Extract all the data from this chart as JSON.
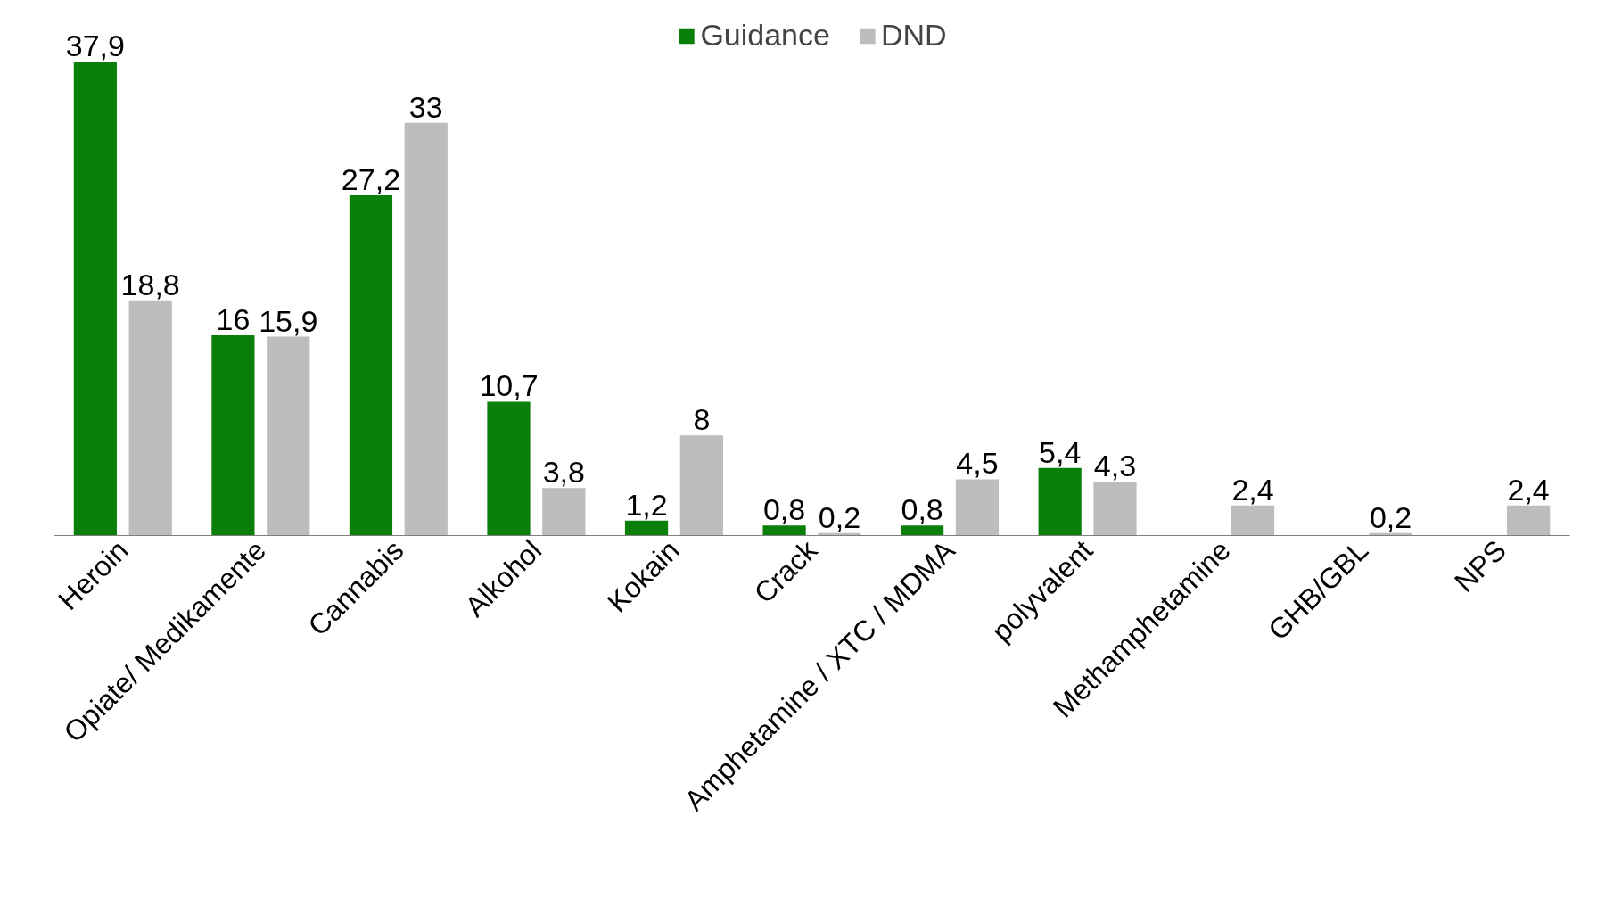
{
  "chart_data": {
    "type": "bar",
    "categories": [
      "Heroin",
      "Opiate/ Medikamente",
      "Cannabis",
      "Alkohol",
      "Kokain",
      "Crack",
      "Amphetamine / XTC / MDMA",
      "polyvalent",
      "Methamphetamine",
      "GHB/GBL",
      "NPS"
    ],
    "series": [
      {
        "name": "Guidance",
        "color": "#0a7f0a",
        "values": [
          37.9,
          16,
          27.2,
          10.7,
          1.2,
          0.8,
          0.8,
          5.4,
          null,
          null,
          null
        ],
        "value_labels": [
          "37,9",
          "16",
          "27,2",
          "10,7",
          "1,2",
          "0,8",
          "0,8",
          "5,4",
          null,
          null,
          null
        ]
      },
      {
        "name": "DND",
        "color": "#bdbdbd",
        "values": [
          18.8,
          15.9,
          33,
          3.8,
          8,
          0.2,
          4.5,
          4.3,
          2.4,
          0.2,
          2.4
        ],
        "value_labels": [
          "18,8",
          "15,9",
          "33",
          "3,8",
          "8",
          "0,2",
          "4,5",
          "4,3",
          "2,4",
          "0,2",
          "2,4"
        ]
      }
    ],
    "tick_labels": "x",
    "grid": false,
    "legend": "top"
  }
}
